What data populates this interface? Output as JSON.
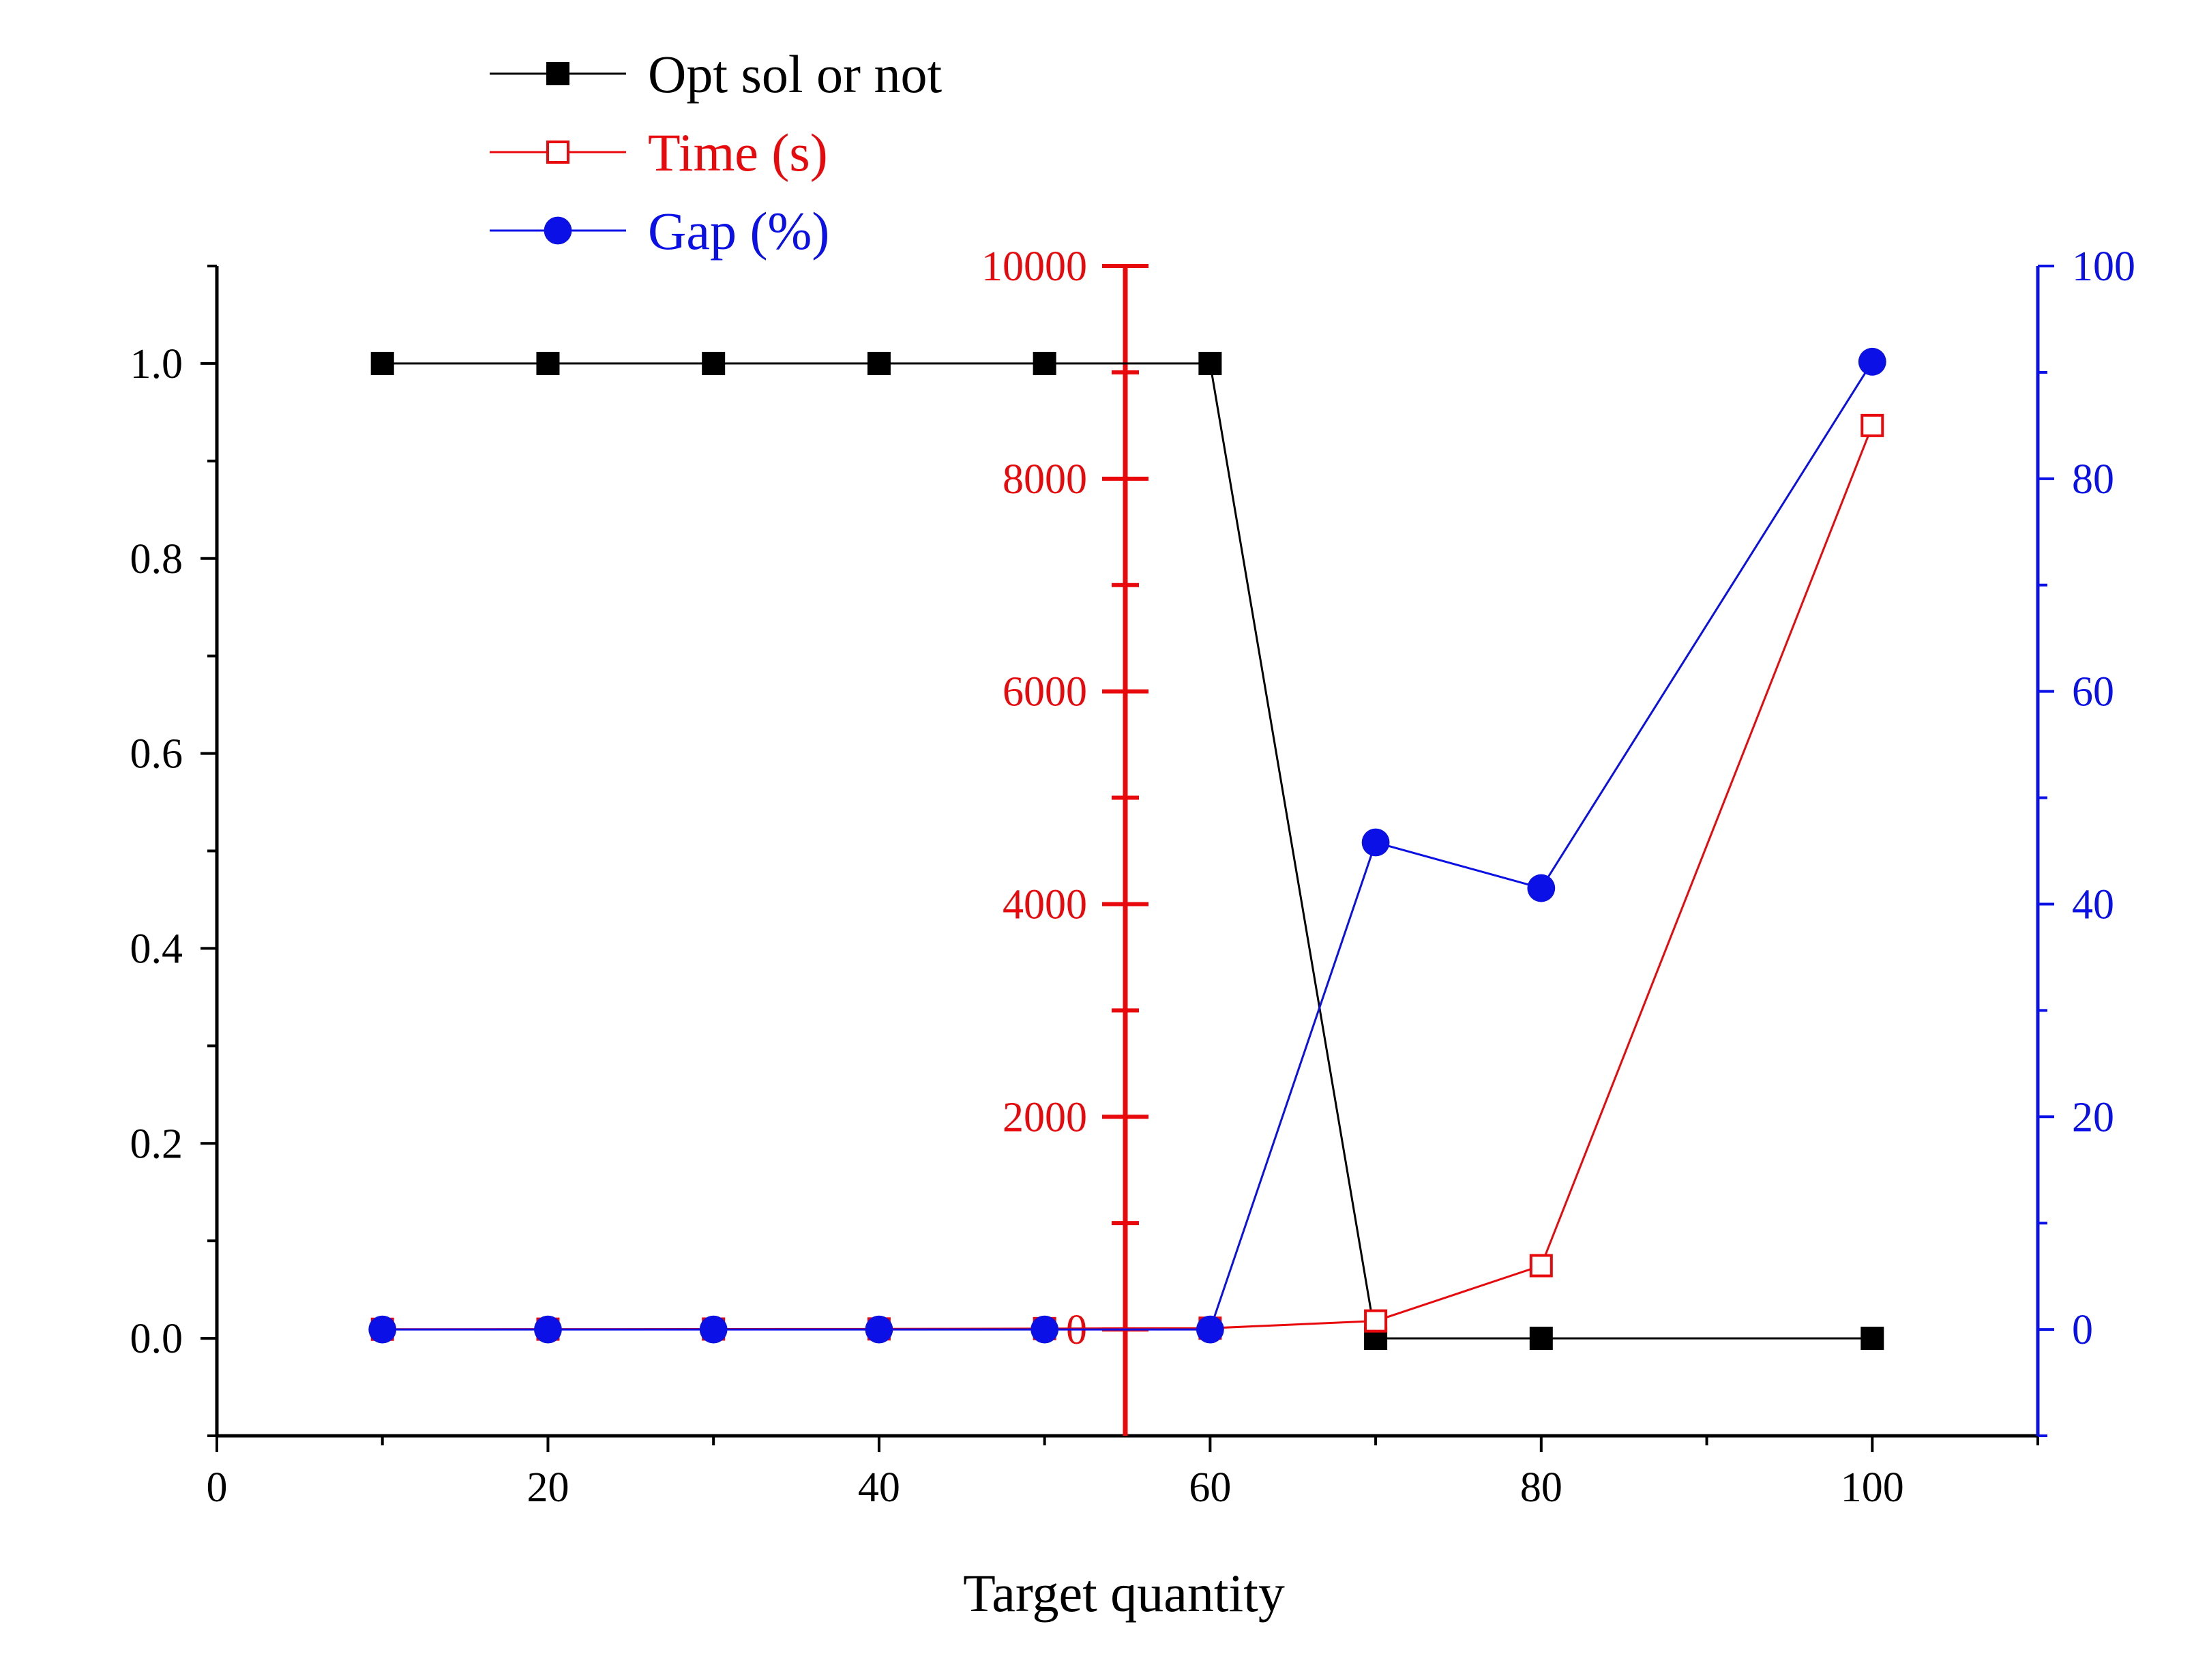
{
  "chart_data": {
    "type": "line",
    "xlabel": "Target quantity",
    "x": [
      10,
      20,
      30,
      40,
      50,
      60,
      70,
      80,
      100
    ],
    "xlim": [
      0,
      110
    ],
    "xticks": [
      0,
      20,
      40,
      60,
      80,
      100
    ],
    "xtick_labels": [
      "0",
      "20",
      "40",
      "60",
      "80",
      "100"
    ],
    "axes": {
      "left": {
        "ylim": [
          -0.1,
          1.1
        ],
        "ticks": [
          0.0,
          0.2,
          0.4,
          0.6,
          0.8,
          1.0
        ],
        "tick_labels": [
          "0.0",
          "0.2",
          "0.4",
          "0.6",
          "0.8",
          "1.0"
        ],
        "color": "#000000"
      },
      "middle": {
        "ylim": [
          -1000,
          10000
        ],
        "ticks": [
          0,
          2000,
          4000,
          6000,
          8000,
          10000
        ],
        "tick_labels": [
          "0",
          "2000",
          "4000",
          "6000",
          "8000",
          "10000"
        ],
        "color": "#e8090c"
      },
      "right": {
        "ylim": [
          -10,
          100
        ],
        "ticks": [
          0,
          20,
          40,
          60,
          80,
          100
        ],
        "tick_labels": [
          "0",
          "20",
          "40",
          "60",
          "80",
          "100"
        ],
        "color": "#0a10e6"
      }
    },
    "series": [
      {
        "name": "Opt sol or not",
        "axis": "left",
        "marker": "filled-square",
        "color": "#000000",
        "values": [
          1,
          1,
          1,
          1,
          1,
          1,
          0,
          0,
          0
        ]
      },
      {
        "name": "Time (s)",
        "axis": "middle",
        "marker": "open-square",
        "color": "#e8090c",
        "values": [
          2,
          3,
          4,
          5,
          8,
          12,
          80,
          600,
          8500
        ]
      },
      {
        "name": "Gap (%)",
        "axis": "right",
        "marker": "filled-circle",
        "color": "#0a10e6",
        "values": [
          0,
          0,
          0,
          0,
          0,
          0,
          45.8,
          41.5,
          91
        ]
      }
    ],
    "legend_position": "top-left",
    "grid": false
  }
}
